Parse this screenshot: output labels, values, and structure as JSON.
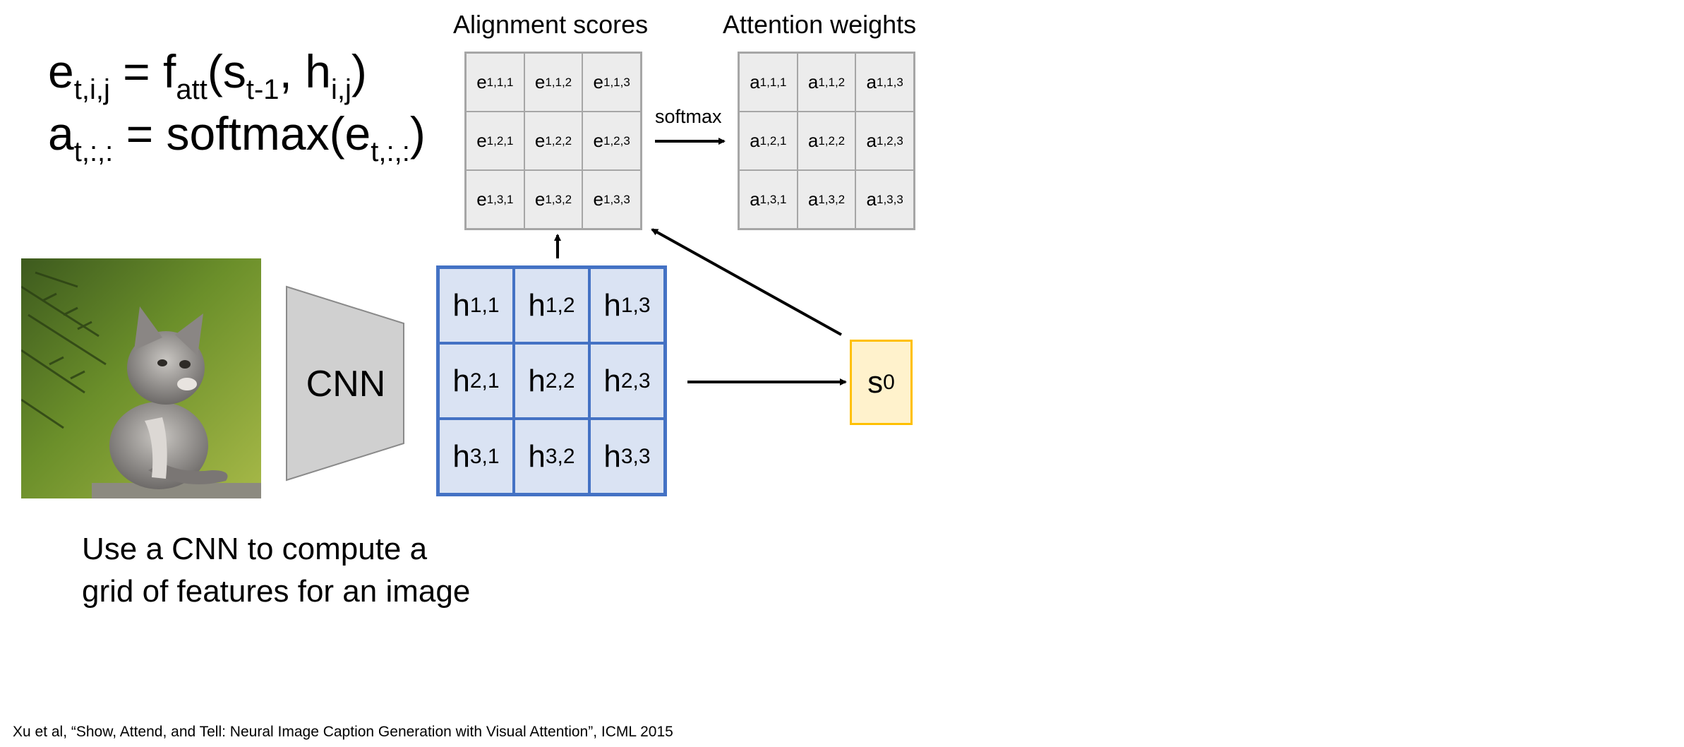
{
  "formulas": {
    "line1": {
      "e": "e",
      "e_sub": "t,i,j",
      "eq": " = f",
      "f_sub": "att",
      "open": "(s",
      "s_sub": "t-1",
      "mid": ", h",
      "h_sub": "i,j",
      "close": ")"
    },
    "line2": {
      "a": "a",
      "a_sub": "t,:,:",
      "eq": " = softmax(e",
      "e_sub": "t,:,:",
      "close": ")"
    }
  },
  "alignment": {
    "title": "Alignment scores",
    "cells": [
      {
        "base": "e",
        "sub": "1,1,1"
      },
      {
        "base": "e",
        "sub": "1,1,2"
      },
      {
        "base": "e",
        "sub": "1,1,3"
      },
      {
        "base": "e",
        "sub": "1,2,1"
      },
      {
        "base": "e",
        "sub": "1,2,2"
      },
      {
        "base": "e",
        "sub": "1,2,3"
      },
      {
        "base": "e",
        "sub": "1,3,1"
      },
      {
        "base": "e",
        "sub": "1,3,2"
      },
      {
        "base": "e",
        "sub": "1,3,3"
      }
    ]
  },
  "attention": {
    "title": "Attention weights",
    "cells": [
      {
        "base": "a",
        "sub": "1,1,1"
      },
      {
        "base": "a",
        "sub": "1,1,2"
      },
      {
        "base": "a",
        "sub": "1,1,3"
      },
      {
        "base": "a",
        "sub": "1,2,1"
      },
      {
        "base": "a",
        "sub": "1,2,2"
      },
      {
        "base": "a",
        "sub": "1,2,3"
      },
      {
        "base": "a",
        "sub": "1,3,1"
      },
      {
        "base": "a",
        "sub": "1,3,2"
      },
      {
        "base": "a",
        "sub": "1,3,3"
      }
    ]
  },
  "softmax_label": "softmax",
  "cnn_label": "CNN",
  "features": {
    "cells": [
      {
        "base": "h",
        "sub": "1,1"
      },
      {
        "base": "h",
        "sub": "1,2"
      },
      {
        "base": "h",
        "sub": "1,3"
      },
      {
        "base": "h",
        "sub": "2,1"
      },
      {
        "base": "h",
        "sub": "2,2"
      },
      {
        "base": "h",
        "sub": "2,3"
      },
      {
        "base": "h",
        "sub": "3,1"
      },
      {
        "base": "h",
        "sub": "3,2"
      },
      {
        "base": "h",
        "sub": "3,3"
      }
    ]
  },
  "state": {
    "base": "s",
    "sub": "0"
  },
  "caption": {
    "line1": "Use a CNN to compute a",
    "line2": "grid of features for an image"
  },
  "citation": "Xu et al, “Show, Attend, and Tell: Neural Image Caption Generation with Visual Attention”, ICML 2015",
  "colors": {
    "feature_fill": "#dae3f3",
    "feature_border": "#4472c4",
    "state_fill": "#fff2cc",
    "state_border": "#ffc000",
    "score_fill": "#ececec",
    "score_border": "#a6a6a6",
    "cnn_fill": "#d0d0d0"
  },
  "image": {
    "subject": "kitten-photo"
  }
}
